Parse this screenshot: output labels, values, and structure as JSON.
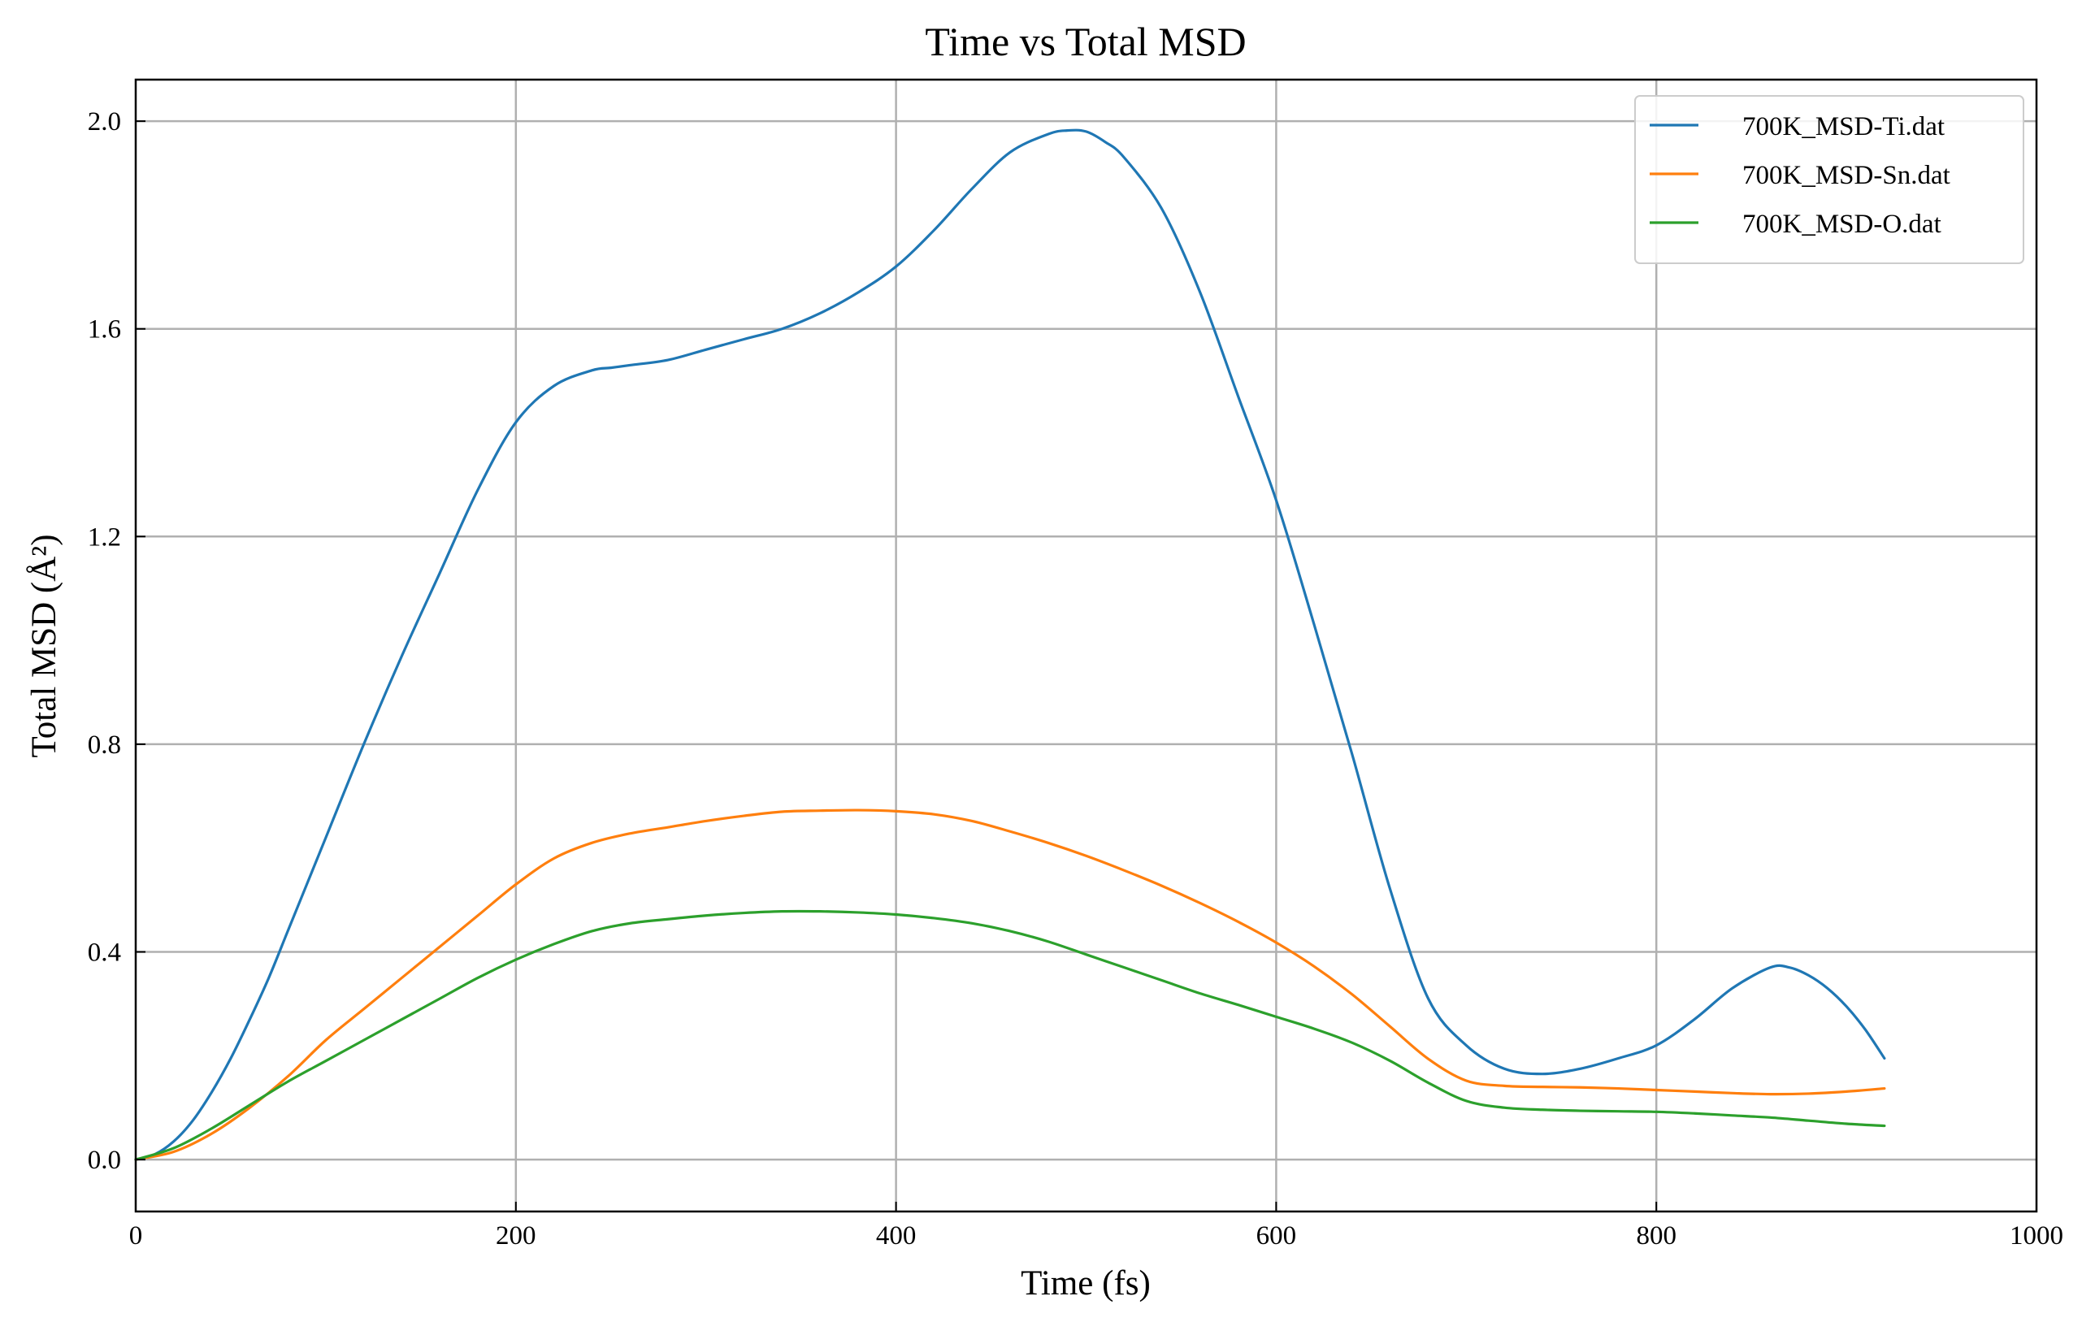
{
  "chart_data": {
    "type": "line",
    "title": "Time vs Total MSD",
    "xlabel": "Time (fs)",
    "ylabel": "Total MSD (Å²)",
    "xlim": [
      0,
      1000
    ],
    "ylim": [
      -0.1,
      2.08
    ],
    "xticks": [
      0,
      200,
      400,
      600,
      800,
      1000
    ],
    "yticks": [
      0.0,
      0.4,
      0.8,
      1.2,
      1.6,
      2.0
    ],
    "xtick_labels": [
      "0",
      "200",
      "400",
      "600",
      "800",
      "1000"
    ],
    "ytick_labels": [
      "0.0",
      "0.4",
      "0.8",
      "1.2",
      "1.6",
      "2.0"
    ],
    "grid": true,
    "legend_position": "top-right",
    "series": [
      {
        "name": "700K_MSD-Ti.dat",
        "color": "#1f77b4",
        "x": [
          0,
          10,
          20,
          30,
          40,
          50,
          60,
          70,
          80,
          90,
          100,
          120,
          140,
          160,
          180,
          200,
          220,
          240,
          250,
          260,
          280,
          300,
          320,
          340,
          360,
          380,
          400,
          420,
          440,
          460,
          480,
          490,
          500,
          510,
          520,
          540,
          560,
          580,
          600,
          620,
          640,
          660,
          680,
          700,
          720,
          740,
          760,
          780,
          800,
          820,
          840,
          860,
          870,
          880,
          890,
          900,
          910,
          920
        ],
        "y": [
          0.0,
          0.01,
          0.035,
          0.075,
          0.13,
          0.195,
          0.27,
          0.35,
          0.44,
          0.53,
          0.62,
          0.8,
          0.97,
          1.13,
          1.29,
          1.42,
          1.49,
          1.52,
          1.525,
          1.53,
          1.54,
          1.56,
          1.58,
          1.6,
          1.63,
          1.67,
          1.72,
          1.79,
          1.87,
          1.94,
          1.975,
          1.982,
          1.98,
          1.96,
          1.93,
          1.83,
          1.67,
          1.47,
          1.27,
          1.03,
          0.78,
          0.52,
          0.31,
          0.22,
          0.175,
          0.165,
          0.175,
          0.195,
          0.22,
          0.27,
          0.33,
          0.37,
          0.37,
          0.355,
          0.33,
          0.295,
          0.25,
          0.195
        ]
      },
      {
        "name": "700K_MSD-Sn.dat",
        "color": "#ff7f0e",
        "x": [
          0,
          20,
          40,
          60,
          80,
          100,
          120,
          140,
          160,
          180,
          200,
          220,
          240,
          260,
          280,
          300,
          320,
          340,
          360,
          380,
          400,
          420,
          440,
          460,
          480,
          500,
          520,
          540,
          560,
          580,
          600,
          620,
          640,
          660,
          680,
          700,
          720,
          740,
          760,
          780,
          800,
          820,
          840,
          860,
          880,
          900,
          920
        ],
        "y": [
          0.0,
          0.015,
          0.05,
          0.1,
          0.16,
          0.23,
          0.29,
          0.35,
          0.41,
          0.47,
          0.53,
          0.58,
          0.61,
          0.628,
          0.64,
          0.652,
          0.662,
          0.67,
          0.672,
          0.673,
          0.671,
          0.665,
          0.652,
          0.632,
          0.61,
          0.585,
          0.557,
          0.527,
          0.494,
          0.458,
          0.418,
          0.372,
          0.318,
          0.256,
          0.194,
          0.152,
          0.142,
          0.14,
          0.139,
          0.137,
          0.134,
          0.131,
          0.128,
          0.126,
          0.127,
          0.131,
          0.137
        ]
      },
      {
        "name": "700K_MSD-O.dat",
        "color": "#2ca02c",
        "x": [
          0,
          20,
          40,
          60,
          80,
          100,
          120,
          140,
          160,
          180,
          200,
          220,
          240,
          260,
          280,
          300,
          320,
          340,
          360,
          380,
          400,
          420,
          440,
          460,
          480,
          500,
          520,
          540,
          560,
          580,
          600,
          620,
          640,
          660,
          680,
          700,
          720,
          740,
          760,
          780,
          800,
          820,
          840,
          860,
          880,
          900,
          920
        ],
        "y": [
          0.0,
          0.022,
          0.06,
          0.105,
          0.15,
          0.19,
          0.23,
          0.27,
          0.31,
          0.35,
          0.385,
          0.415,
          0.44,
          0.455,
          0.463,
          0.47,
          0.475,
          0.478,
          0.478,
          0.476,
          0.472,
          0.465,
          0.455,
          0.44,
          0.42,
          0.395,
          0.37,
          0.345,
          0.32,
          0.298,
          0.275,
          0.252,
          0.225,
          0.19,
          0.148,
          0.113,
          0.1,
          0.096,
          0.094,
          0.093,
          0.092,
          0.089,
          0.085,
          0.081,
          0.075,
          0.069,
          0.065
        ]
      }
    ]
  }
}
